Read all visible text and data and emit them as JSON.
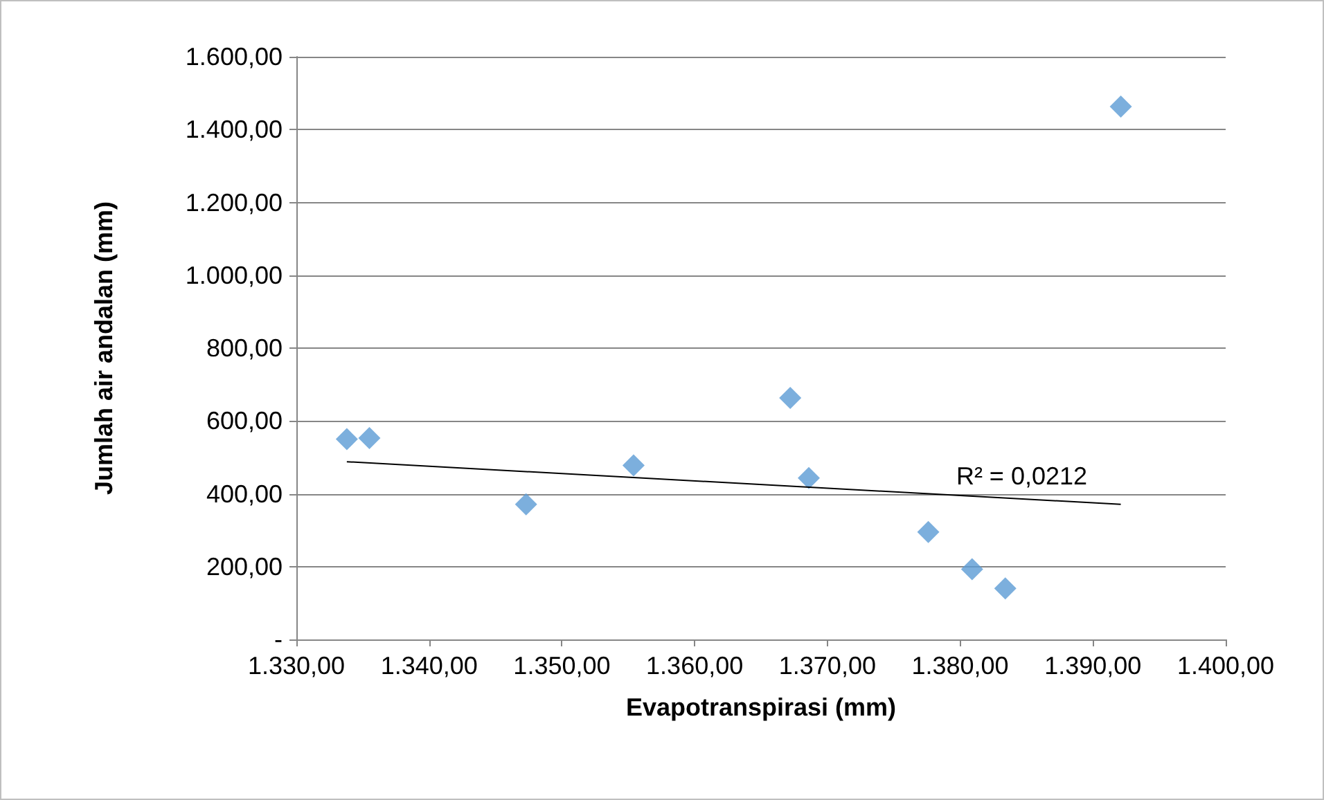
{
  "chart_data": {
    "type": "scatter",
    "xlabel": "Evapotranspirasi (mm)",
    "ylabel": "Jumlah air andalan (mm)",
    "xlim": [
      1330,
      1400
    ],
    "ylim": [
      0,
      1600
    ],
    "xticks": [
      {
        "value": 1330,
        "label": "1.330,00"
      },
      {
        "value": 1340,
        "label": "1.340,00"
      },
      {
        "value": 1350,
        "label": "1.350,00"
      },
      {
        "value": 1360,
        "label": "1.360,00"
      },
      {
        "value": 1370,
        "label": "1.370,00"
      },
      {
        "value": 1380,
        "label": "1.380,00"
      },
      {
        "value": 1390,
        "label": "1.390,00"
      },
      {
        "value": 1400,
        "label": "1.400,00"
      }
    ],
    "yticks": [
      {
        "value": 0,
        "label": "-"
      },
      {
        "value": 200,
        "label": "200,00"
      },
      {
        "value": 400,
        "label": "400,00"
      },
      {
        "value": 600,
        "label": "600,00"
      },
      {
        "value": 800,
        "label": "800,00"
      },
      {
        "value": 1000,
        "label": "1.000,00"
      },
      {
        "value": 1200,
        "label": "1.200,00"
      },
      {
        "value": 1400,
        "label": "1.400,00"
      },
      {
        "value": 1600,
        "label": "1.600,00"
      }
    ],
    "grid": "y",
    "marker": "diamond",
    "series": [
      {
        "color": "#5b9bd5",
        "x": [
          1333.8,
          1335.5,
          1347.3,
          1355.4,
          1367.2,
          1368.6,
          1377.6,
          1380.9,
          1383.4,
          1392.1
        ],
        "values": [
          550,
          553,
          371,
          478,
          663,
          443,
          295,
          193,
          140,
          1463
        ]
      },
      {
        "type": "line",
        "color": "#000000",
        "marker": "none",
        "x": [
          1333.8,
          1392.1
        ],
        "values": [
          488,
          371
        ]
      }
    ],
    "annotations": [
      "R² = 0,0212"
    ]
  }
}
